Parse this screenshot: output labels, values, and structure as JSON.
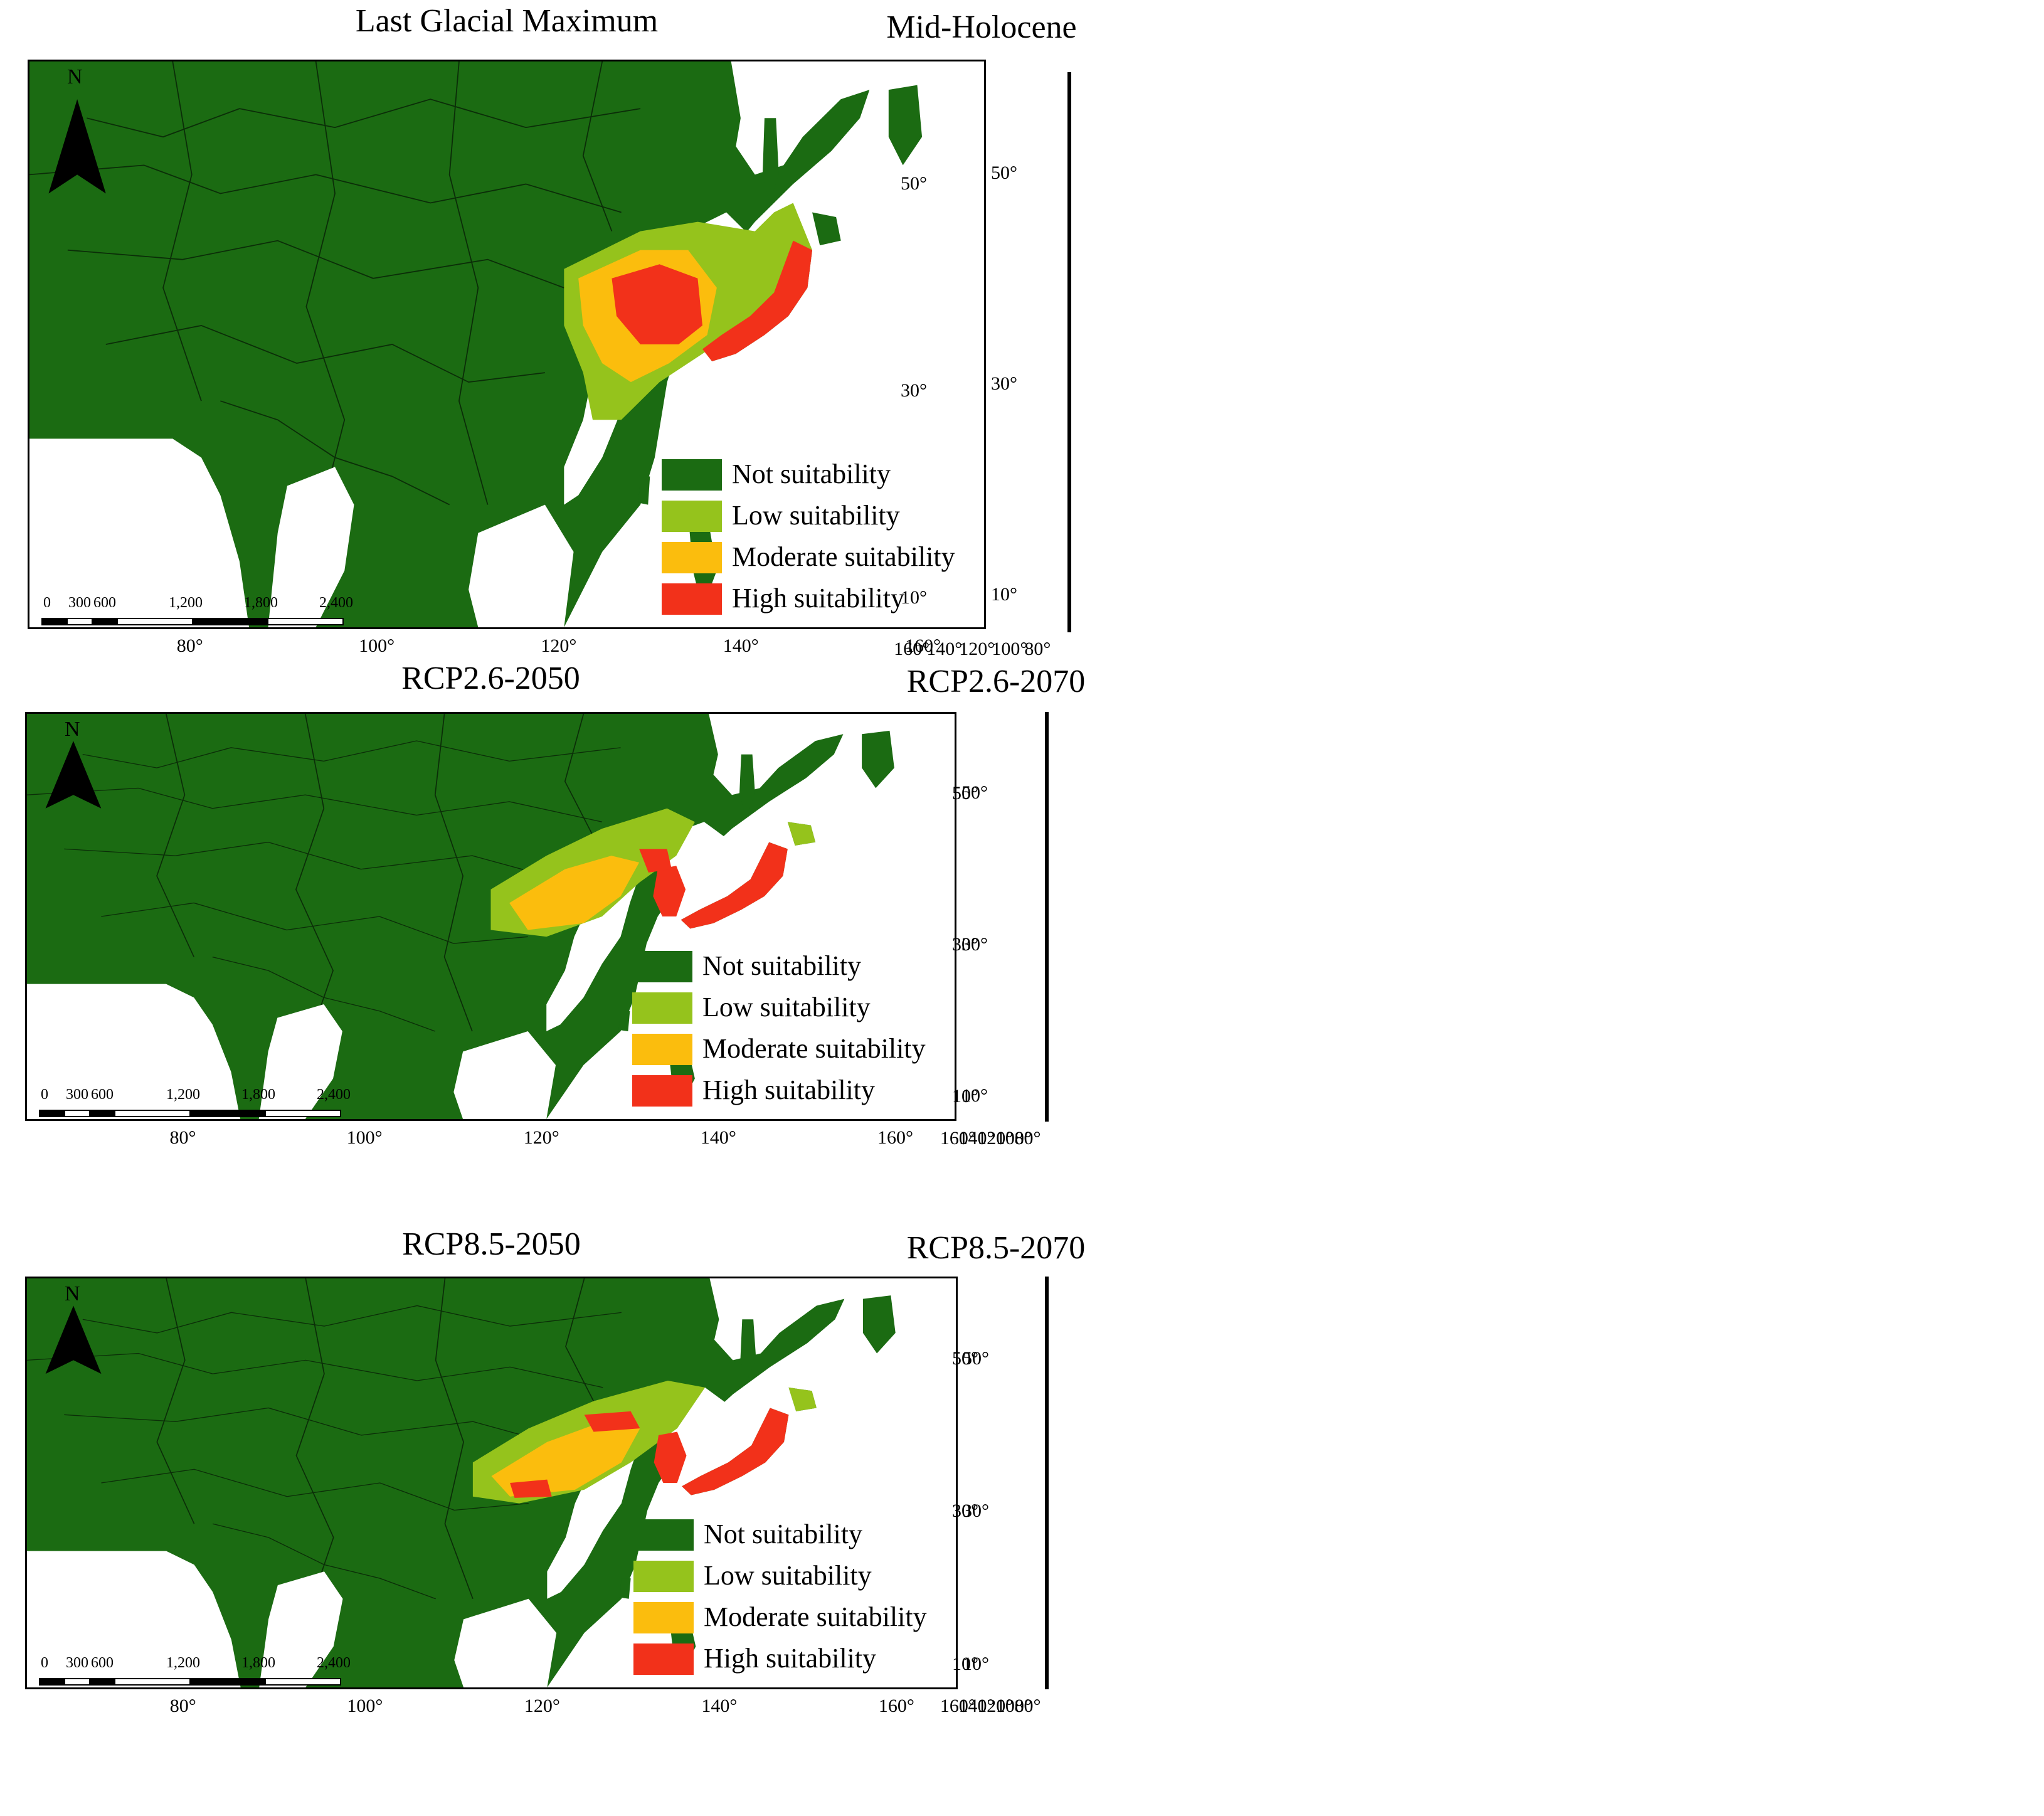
{
  "colors": {
    "not": "#1b6b12",
    "low": "#95c31c",
    "moderate": "#fbbd0d",
    "high": "#f2311a",
    "sea": "#ffffff",
    "border": "#0b2e08"
  },
  "legend": {
    "not": "Not suitability",
    "low": "Low suitability",
    "moderate": "Moderate suitability",
    "high": "High suitability"
  },
  "north_label": "N",
  "scale_bar": [
    "0",
    "300",
    "600",
    "1,200",
    "1,800",
    "2,400"
  ],
  "lon_ticks": [
    "80°",
    "100°",
    "120°",
    "140°",
    "160°"
  ],
  "lat_ticks": [
    "50°",
    "30°",
    "10°"
  ],
  "panels": [
    {
      "title": "Last Glacial Maximum"
    },
    {
      "title": "Mid-Holocene"
    },
    {
      "title": "RCP2.6-2050"
    },
    {
      "title": "RCP2.6-2070"
    },
    {
      "title": "RCP8.5-2050"
    },
    {
      "title": "RCP8.5-2070"
    }
  ]
}
